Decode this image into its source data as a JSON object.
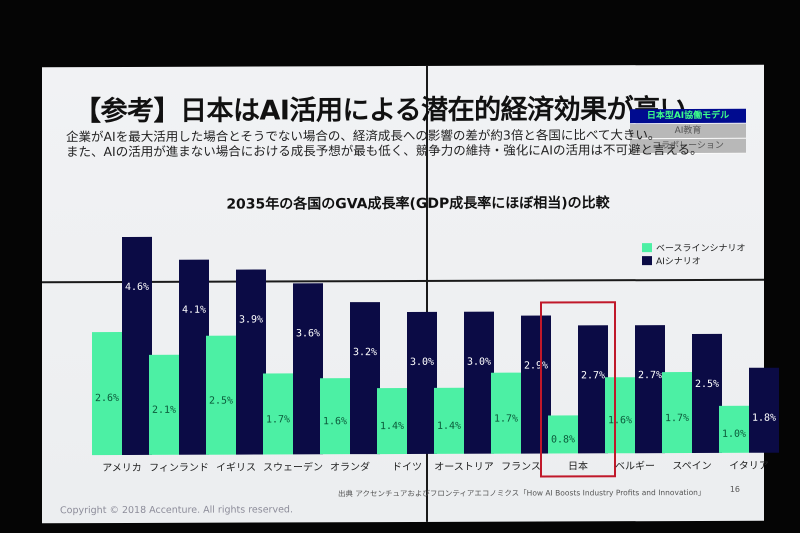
{
  "slide": {
    "title": "【参考】日本はAI活用による潜在的経済効果が高い",
    "subtitle_lines": [
      "企業がAIを最大活用した場合とそうでない場合の、経済成長への影響の差が約3倍と各国に比べて大きい。",
      "また、AIの活用が進まない場合における成長予想が最も低く、競争力の維持・強化にAIの活用は不可避と言える。"
    ],
    "tags": [
      {
        "label": "日本型AI協働モデル",
        "active": true
      },
      {
        "label": "AI教育",
        "active": false
      },
      {
        "label": "コラボレーション",
        "active": false
      }
    ],
    "copyright": "Copyright © 2018 Accenture. All rights reserved.",
    "source": "出典 アクセンチュアおよびフロンティアエコノミクス「How AI Boosts Industry Profits and Innovation」",
    "page_number": "16",
    "highlight_country": "日本"
  },
  "colors": {
    "baseline": "#4cf0a4",
    "ai": "#0b0b45",
    "highlight_border": "#c0182a",
    "tag_active_bg": "#000b8f",
    "tag_active_text": "#3cff8a"
  },
  "chart_data": {
    "type": "bar",
    "title": "2035年の各国のGVA成長率(GDP成長率にほぼ相当)の比較",
    "xlabel": "",
    "ylabel": "",
    "categories": [
      "アメリカ",
      "フィンランド",
      "イギリス",
      "スウェーデン",
      "オランダ",
      "ドイツ",
      "オーストリア",
      "フランス",
      "日本",
      "ベルギー",
      "スペイン",
      "イタリア"
    ],
    "series": [
      {
        "name": "ベースラインシナリオ",
        "values": [
          2.6,
          2.1,
          2.5,
          1.7,
          1.6,
          1.4,
          1.4,
          1.7,
          0.8,
          1.6,
          1.7,
          1.0
        ]
      },
      {
        "name": "AIシナリオ",
        "values": [
          4.6,
          4.1,
          3.9,
          3.6,
          3.2,
          3.0,
          3.0,
          2.9,
          2.7,
          2.7,
          2.5,
          1.8
        ]
      }
    ],
    "value_format": "{v}%",
    "ylim": [
      0,
      4.8
    ],
    "legend_position": "top-right",
    "grid": false
  }
}
